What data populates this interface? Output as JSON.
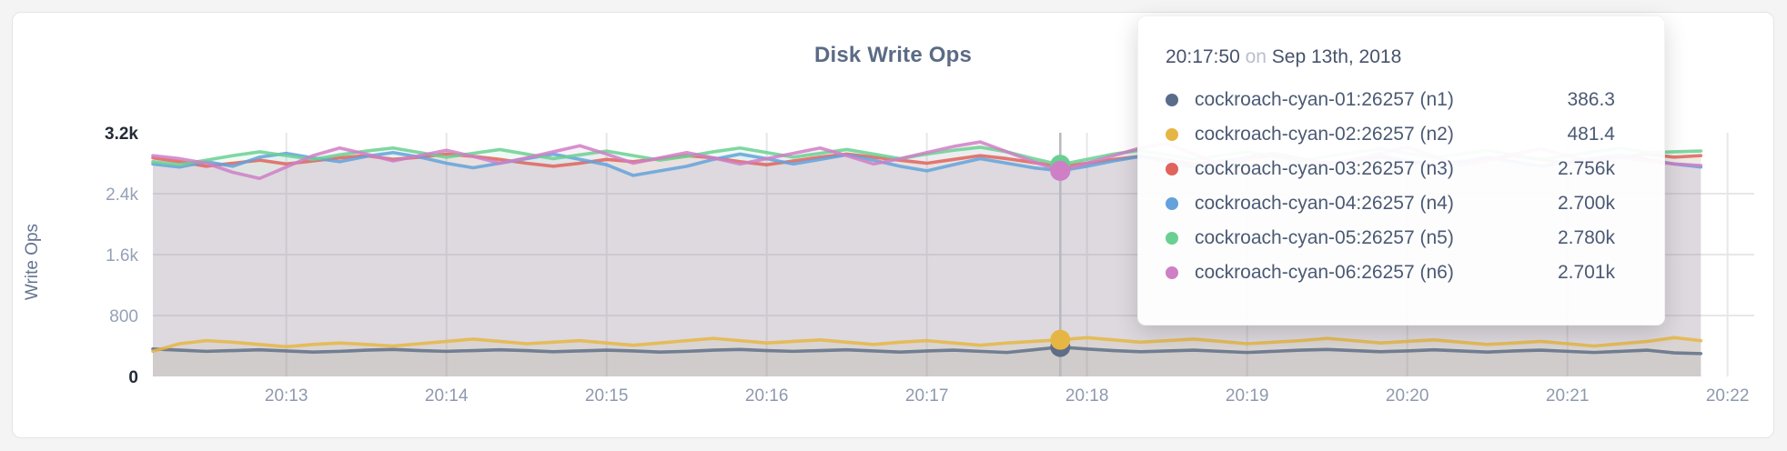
{
  "chart_data": {
    "type": "line",
    "title": "Disk Write Ops",
    "ylabel": "Write Ops",
    "xlabel": "",
    "ylim": [
      0,
      3200
    ],
    "grid": "on",
    "legend_position": "tooltip-overlay",
    "x_start_time": "20:12:10",
    "x_interval_seconds": 10,
    "y_ticks": [
      {
        "value": 0,
        "label": "0",
        "grid": false,
        "emphasis": true
      },
      {
        "value": 800,
        "label": "800",
        "grid": true,
        "emphasis": false
      },
      {
        "value": 1600,
        "label": "1.6k",
        "grid": true,
        "emphasis": false
      },
      {
        "value": 2400,
        "label": "2.4k",
        "grid": true,
        "emphasis": false
      },
      {
        "value": 3200,
        "label": "3.2k",
        "grid": false,
        "emphasis": true
      }
    ],
    "x_ticks": [
      {
        "label": "20:13",
        "index": 5
      },
      {
        "label": "20:14",
        "index": 11
      },
      {
        "label": "20:15",
        "index": 17
      },
      {
        "label": "20:16",
        "index": 23
      },
      {
        "label": "20:17",
        "index": 29
      },
      {
        "label": "20:18",
        "index": 35
      },
      {
        "label": "20:19",
        "index": 41
      },
      {
        "label": "20:20",
        "index": 47
      },
      {
        "label": "20:21",
        "index": 53
      },
      {
        "label": "20:22",
        "index": 59
      }
    ],
    "hover": {
      "index": 34,
      "time": "20:17:50"
    },
    "series": [
      {
        "name": "cockroach-cyan-01:26257 (n1)",
        "color": "#5f6e88",
        "values": [
          360,
          345,
          330,
          340,
          350,
          335,
          320,
          330,
          345,
          355,
          340,
          330,
          340,
          350,
          340,
          325,
          335,
          345,
          335,
          320,
          330,
          345,
          355,
          340,
          330,
          340,
          350,
          335,
          320,
          335,
          345,
          330,
          315,
          350,
          386.3,
          360,
          340,
          325,
          335,
          345,
          330,
          315,
          330,
          345,
          355,
          340,
          325,
          335,
          350,
          335,
          320,
          335,
          345,
          330,
          315,
          330,
          345,
          310,
          300
        ]
      },
      {
        "name": "cockroach-cyan-02:26257 (n2)",
        "color": "#e6b645",
        "values": [
          330,
          430,
          470,
          450,
          420,
          390,
          420,
          440,
          420,
          400,
          430,
          460,
          490,
          460,
          430,
          450,
          470,
          440,
          410,
          440,
          470,
          500,
          470,
          440,
          460,
          480,
          450,
          420,
          450,
          470,
          440,
          410,
          440,
          460,
          481.4,
          510,
          480,
          450,
          470,
          490,
          460,
          430,
          450,
          470,
          500,
          470,
          440,
          460,
          480,
          450,
          420,
          440,
          460,
          430,
          400,
          430,
          460,
          510,
          470
        ]
      },
      {
        "name": "cockroach-cyan-03:26257 (n3)",
        "color": "#e0635c",
        "values": [
          2870,
          2820,
          2760,
          2800,
          2840,
          2790,
          2830,
          2870,
          2900,
          2850,
          2880,
          2920,
          2890,
          2850,
          2800,
          2760,
          2800,
          2850,
          2820,
          2860,
          2900,
          2870,
          2820,
          2780,
          2830,
          2880,
          2920,
          2880,
          2840,
          2800,
          2850,
          2900,
          2860,
          2810,
          2756,
          2800,
          2850,
          2890,
          2840,
          2790,
          2830,
          2870,
          2900,
          2850,
          2800,
          2840,
          2880,
          2830,
          2780,
          2820,
          2860,
          2900,
          2850,
          2800,
          2840,
          2880,
          2920,
          2880,
          2900
        ]
      },
      {
        "name": "cockroach-cyan-04:26257 (n4)",
        "color": "#63a2da",
        "values": [
          2790,
          2750,
          2820,
          2760,
          2880,
          2930,
          2870,
          2820,
          2890,
          2940,
          2880,
          2800,
          2740,
          2800,
          2860,
          2920,
          2850,
          2780,
          2640,
          2700,
          2760,
          2850,
          2920,
          2860,
          2790,
          2850,
          2910,
          2840,
          2760,
          2700,
          2780,
          2860,
          2800,
          2740,
          2700,
          2760,
          2830,
          2890,
          2820,
          2750,
          2810,
          2880,
          2930,
          2860,
          2790,
          2850,
          2900,
          2830,
          2760,
          2820,
          2880,
          2820,
          2760,
          2810,
          2870,
          2910,
          2850,
          2790,
          2750
        ]
      },
      {
        "name": "cockroach-cyan-05:26257 (n5)",
        "color": "#6ad092",
        "values": [
          2820,
          2780,
          2840,
          2900,
          2950,
          2900,
          2850,
          2910,
          2960,
          3000,
          2940,
          2880,
          2930,
          2980,
          2920,
          2860,
          2910,
          2960,
          2900,
          2840,
          2890,
          2950,
          3000,
          2940,
          2880,
          2930,
          2980,
          2920,
          2860,
          2920,
          2970,
          3010,
          2950,
          2860,
          2780,
          2850,
          2920,
          2970,
          2910,
          2850,
          2900,
          2950,
          2890,
          2830,
          2890,
          2940,
          2990,
          2930,
          2870,
          2920,
          2970,
          2910,
          2850,
          2900,
          2950,
          3000,
          2940,
          2950,
          2960
        ]
      },
      {
        "name": "cockroach-cyan-06:26257 (n6)",
        "color": "#cf7fc6",
        "values": [
          2900,
          2860,
          2800,
          2680,
          2600,
          2750,
          2900,
          3000,
          2920,
          2830,
          2900,
          2970,
          2890,
          2800,
          2870,
          2950,
          3030,
          2920,
          2800,
          2870,
          2940,
          2870,
          2790,
          2860,
          2930,
          3000,
          2900,
          2790,
          2860,
          2940,
          3020,
          3080,
          2950,
          2820,
          2701,
          2800,
          2900,
          3000,
          3060,
          2920,
          2780,
          2850,
          2930,
          2860,
          2780,
          2850,
          2930,
          3010,
          2890,
          2770,
          2840,
          2920,
          2990,
          2900,
          2810,
          2880,
          2830,
          2790,
          2770
        ]
      }
    ]
  },
  "tooltip": {
    "time": "20:17:50",
    "conjunction": "on",
    "date": "Sep 13th, 2018",
    "rows": [
      {
        "name": "cockroach-cyan-01:26257 (n1)",
        "value": "386.3",
        "color": "#5b6c8a"
      },
      {
        "name": "cockroach-cyan-02:26257 (n2)",
        "value": "481.4",
        "color": "#e6b645"
      },
      {
        "name": "cockroach-cyan-03:26257 (n3)",
        "value": "2.756k",
        "color": "#e0635c"
      },
      {
        "name": "cockroach-cyan-04:26257 (n4)",
        "value": "2.700k",
        "color": "#63a2da"
      },
      {
        "name": "cockroach-cyan-05:26257 (n5)",
        "value": "2.780k",
        "color": "#6ad092"
      },
      {
        "name": "cockroach-cyan-06:26257 (n6)",
        "value": "2.701k",
        "color": "#cf7fc6"
      }
    ]
  }
}
